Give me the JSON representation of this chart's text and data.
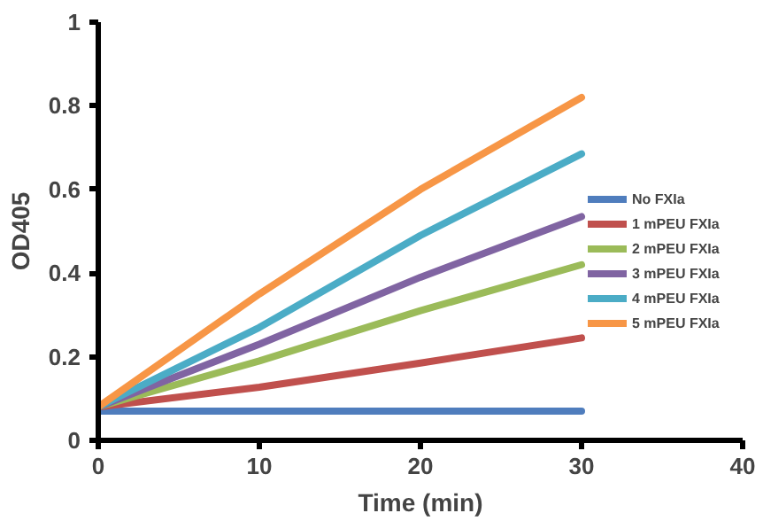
{
  "chart_data": {
    "type": "line",
    "xlabel": "Time (min)",
    "ylabel": "OD405",
    "x": [
      0,
      10,
      20,
      30
    ],
    "xlim": [
      0,
      40
    ],
    "xticks": [
      0,
      10,
      20,
      30,
      40
    ],
    "ylim": [
      0,
      1
    ],
    "yticks": [
      0,
      0.2,
      0.4,
      0.6,
      0.8,
      1
    ],
    "grid": false,
    "legend": "right",
    "marker": "none",
    "line_style": "solid",
    "series": [
      {
        "name": "No FXIa",
        "color": "#4f7dbd",
        "values": [
          0.07,
          0.07,
          0.07,
          0.07
        ]
      },
      {
        "name": "1 mPEU FXIa",
        "color": "#c0504d",
        "values": [
          0.08,
          0.127,
          0.185,
          0.245
        ]
      },
      {
        "name": "2 mPEU FXIa",
        "color": "#9bbb59",
        "values": [
          0.08,
          0.19,
          0.31,
          0.42
        ]
      },
      {
        "name": "3 mPEU FXIa",
        "color": "#8064a2",
        "values": [
          0.08,
          0.23,
          0.39,
          0.535
        ]
      },
      {
        "name": "4 mPEU FXIa",
        "color": "#4bacc6",
        "values": [
          0.08,
          0.27,
          0.49,
          0.685
        ]
      },
      {
        "name": "5 mPEU FXIa",
        "color": "#f79646",
        "values": [
          0.08,
          0.35,
          0.6,
          0.82
        ]
      }
    ]
  }
}
